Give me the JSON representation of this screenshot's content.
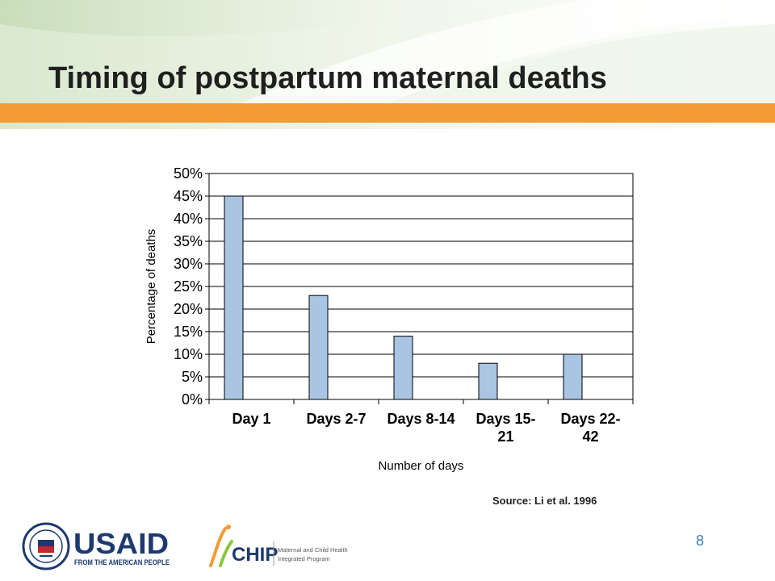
{
  "slide": {
    "title": "Timing of postpartum maternal deaths",
    "source": "Source: Li et al. 1996",
    "page_number": "8"
  },
  "logos": {
    "usaid_seal": "USAID seal",
    "usaid": "USAID",
    "usaid_tagline": "FROM THE AMERICAN PEOPLE",
    "mchip": "CHIP",
    "mchip_line1": "Maternal and Child Health",
    "mchip_line2": "Integrated Program"
  },
  "colors": {
    "accent_orange": "#f39c34",
    "bar_fill": "#a9c5e3",
    "page_number": "#3a7fb5",
    "usaid_blue": "#1d3a6e",
    "usaid_red": "#c1272d"
  },
  "chart_data": {
    "type": "bar",
    "categories": [
      [
        "Day 1"
      ],
      [
        "Days 2-7"
      ],
      [
        "Days 8-14"
      ],
      [
        "Days 15-",
        "21"
      ],
      [
        "Days 22-",
        "42"
      ]
    ],
    "values": [
      45,
      23,
      14,
      8,
      10
    ],
    "xlabel": "Number of days",
    "ylabel": "Percentage of deaths",
    "ylim": [
      0,
      50
    ],
    "yticks": [
      "0%",
      "5%",
      "10%",
      "15%",
      "20%",
      "25%",
      "30%",
      "35%",
      "40%",
      "45%",
      "50%"
    ],
    "grid": true
  }
}
